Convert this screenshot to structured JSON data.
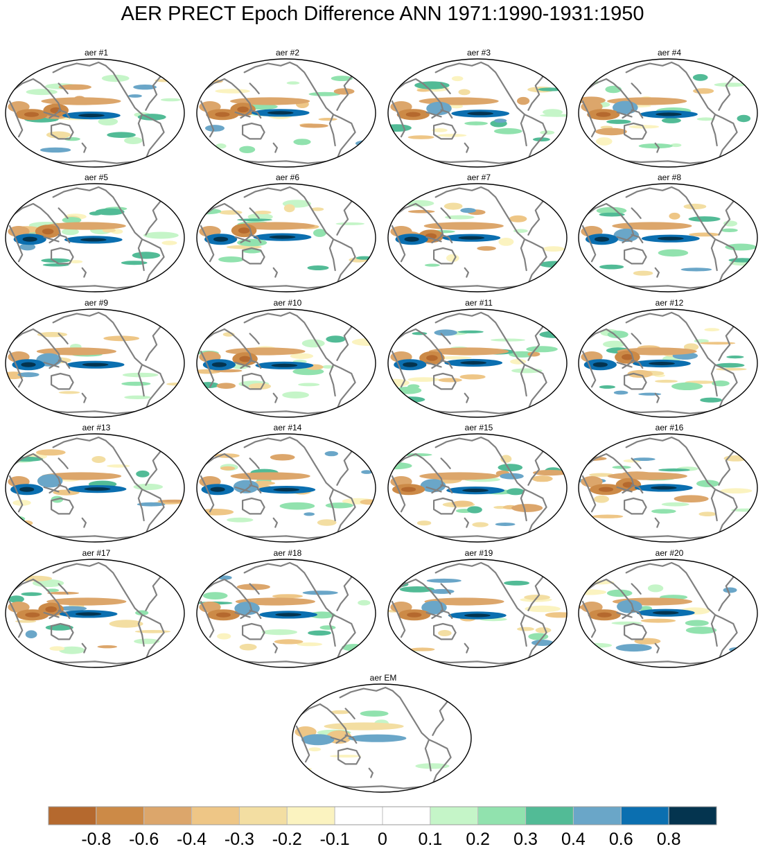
{
  "title": "AER PRECT Epoch Difference ANN 1971:1990-1931:1950",
  "panels": [
    {
      "label": "aer #1",
      "seed": 1
    },
    {
      "label": "aer #2",
      "seed": 2
    },
    {
      "label": "aer #3",
      "seed": 3
    },
    {
      "label": "aer #4",
      "seed": 4
    },
    {
      "label": "aer #5",
      "seed": 5
    },
    {
      "label": "aer #6",
      "seed": 6
    },
    {
      "label": "aer #7",
      "seed": 7
    },
    {
      "label": "aer #8",
      "seed": 8
    },
    {
      "label": "aer #9",
      "seed": 9
    },
    {
      "label": "aer #10",
      "seed": 10
    },
    {
      "label": "aer #11",
      "seed": 11
    },
    {
      "label": "aer #12",
      "seed": 12
    },
    {
      "label": "aer #13",
      "seed": 13
    },
    {
      "label": "aer #14",
      "seed": 14
    },
    {
      "label": "aer #15",
      "seed": 15
    },
    {
      "label": "aer #16",
      "seed": 16
    },
    {
      "label": "aer #17",
      "seed": 17
    },
    {
      "label": "aer #18",
      "seed": 18
    },
    {
      "label": "aer #19",
      "seed": 19
    },
    {
      "label": "aer #20",
      "seed": 20
    },
    {
      "label": "aer EM",
      "seed": 21
    }
  ],
  "chart_data": {
    "type": "heatmap",
    "title": "AER PRECT Epoch Difference ANN 1971:1990-1931:1950",
    "projection": "robinson",
    "colorbar": {
      "tick_labels": [
        "-0.8",
        "-0.6",
        "-0.4",
        "-0.3",
        "-0.2",
        "-0.1",
        "0",
        "0.1",
        "0.2",
        "0.3",
        "0.4",
        "0.6",
        "0.8"
      ],
      "colors": [
        "#b5692e",
        "#cc8a47",
        "#dca66b",
        "#eec686",
        "#f3dea2",
        "#fbf3c0",
        "#ffffff",
        "#ffffff",
        "#c5f5c8",
        "#91e2ae",
        "#52bb96",
        "#6aa6c8",
        "#0b6fb0",
        "#04344f"
      ]
    },
    "coastline_color": "#808080"
  }
}
